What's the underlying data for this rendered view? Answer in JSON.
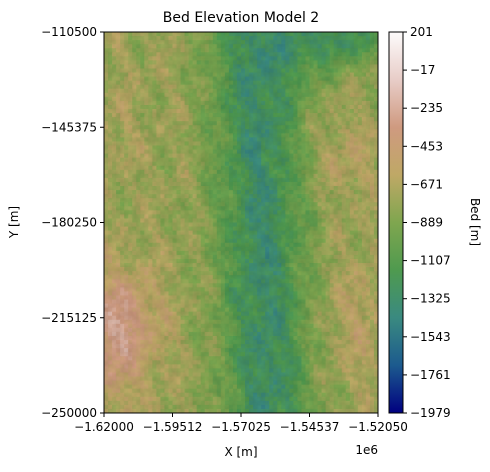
{
  "chart_data": {
    "type": "heatmap",
    "title": "Bed Elevation Model 2",
    "xlabel": "X [m]",
    "ylabel": "Y [m]",
    "x_offset_label": "1e6",
    "xlim": [
      -1.62,
      -1.5205
    ],
    "ylim": [
      -250000,
      -110500
    ],
    "x_ticks": [
      -1.62,
      -1.59512,
      -1.57025,
      -1.54537,
      -1.5205
    ],
    "x_tick_labels": [
      "−1.62000",
      "−1.59512",
      "−1.57025",
      "−1.54537",
      "−1.52050"
    ],
    "y_ticks": [
      -110500,
      -145375,
      -180250,
      -215125,
      -250000
    ],
    "y_tick_labels": [
      "−110500",
      "−145375",
      "−180250",
      "−215125",
      "−250000"
    ],
    "colorbar": {
      "label": "Bed [m]",
      "range": [
        -1979,
        201
      ],
      "ticks": [
        201,
        -17,
        -235,
        -453,
        -671,
        -889,
        -1107,
        -1325,
        -1543,
        -1761,
        -1979
      ],
      "tick_labels": [
        "201",
        "−17",
        "−235",
        "−453",
        "−671",
        "−889",
        "−1107",
        "−1325",
        "−1543",
        "−1761",
        "−1979"
      ],
      "colormap": "gist_earth",
      "colormap_stops": [
        "#000080",
        "#1c5a8e",
        "#3a8a80",
        "#4f9a4f",
        "#7fa64f",
        "#bfa866",
        "#cf9a80",
        "#e8cdc8",
        "#fdfbfb"
      ]
    },
    "grid": false,
    "legend": "none"
  }
}
